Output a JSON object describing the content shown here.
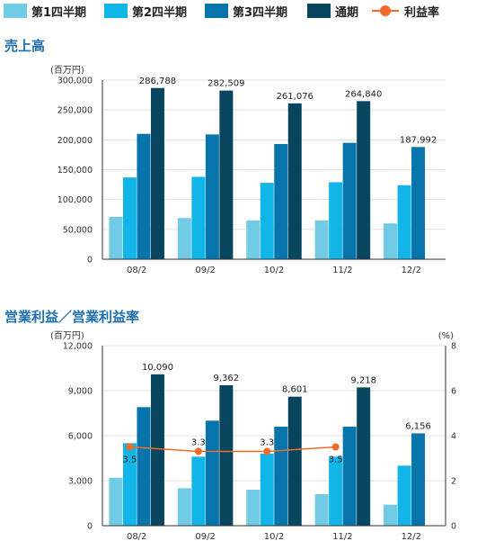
{
  "legend": {
    "items": [
      {
        "label": "第1四半期",
        "color": "#72cbe4"
      },
      {
        "label": "第2四半期",
        "color": "#12b5e8"
      },
      {
        "label": "第3四半期",
        "color": "#0874ac"
      },
      {
        "label": "通期",
        "color": "#07465e"
      },
      {
        "label": "利益率",
        "color": "#f26b2b"
      }
    ]
  },
  "colors": {
    "title": "#1e6fb0",
    "axis": "#333333",
    "grid": "#e0e0e0",
    "line": "#f26b2b"
  },
  "chart_data": [
    {
      "type": "bar",
      "title": "売上高",
      "ylabel": "(百万円)",
      "categories": [
        "08/2",
        "09/2",
        "10/2",
        "11/2",
        "12/2"
      ],
      "ylim": [
        0,
        300000
      ],
      "yticks": [
        0,
        50000,
        100000,
        150000,
        200000,
        250000,
        300000
      ],
      "ytick_labels": [
        "0",
        "50,000",
        "100,000",
        "150,000",
        "200,000",
        "250,000",
        "300,000"
      ],
      "series": [
        {
          "name": "第1四半期",
          "values": [
            71000,
            69000,
            65000,
            65000,
            60000
          ]
        },
        {
          "name": "第2四半期",
          "values": [
            137000,
            138000,
            128000,
            129000,
            124000
          ]
        },
        {
          "name": "第3四半期",
          "values": [
            210000,
            209000,
            193000,
            195000,
            187992
          ]
        },
        {
          "name": "通期",
          "values": [
            286788,
            282509,
            261076,
            264840,
            null
          ]
        }
      ],
      "data_labels": [
        "286,788",
        "282,509",
        "261,076",
        "264,840",
        "187,992"
      ],
      "grid": true
    },
    {
      "type": "bar",
      "title": "営業利益／営業利益率",
      "ylabel": "(百万円)",
      "y2label": "(%)",
      "categories": [
        "08/2",
        "09/2",
        "10/2",
        "11/2",
        "12/2"
      ],
      "ylim": [
        0,
        12000
      ],
      "yticks": [
        0,
        3000,
        6000,
        9000,
        12000
      ],
      "ytick_labels": [
        "0",
        "3,000",
        "6,000",
        "9,000",
        "12,000"
      ],
      "y2lim": [
        0,
        8
      ],
      "y2ticks": [
        0,
        2,
        4,
        6,
        8
      ],
      "y2tick_labels": [
        "0",
        "2",
        "4",
        "6",
        "8"
      ],
      "series": [
        {
          "name": "第1四半期",
          "values": [
            3200,
            2500,
            2400,
            2100,
            1400
          ]
        },
        {
          "name": "第2四半期",
          "values": [
            5500,
            4600,
            4800,
            4600,
            4000
          ]
        },
        {
          "name": "第3四半期",
          "values": [
            7900,
            7000,
            6600,
            6600,
            6156
          ]
        },
        {
          "name": "通期",
          "values": [
            10090,
            9362,
            8601,
            9218,
            null
          ]
        }
      ],
      "data_labels": [
        "10,090",
        "9,362",
        "8,601",
        "9,218",
        "6,156"
      ],
      "line": {
        "name": "利益率",
        "values": [
          3.5,
          3.3,
          3.3,
          3.5
        ],
        "labels": [
          "3.5",
          "3.3",
          "3.3",
          "3.5"
        ]
      },
      "grid": true
    }
  ]
}
